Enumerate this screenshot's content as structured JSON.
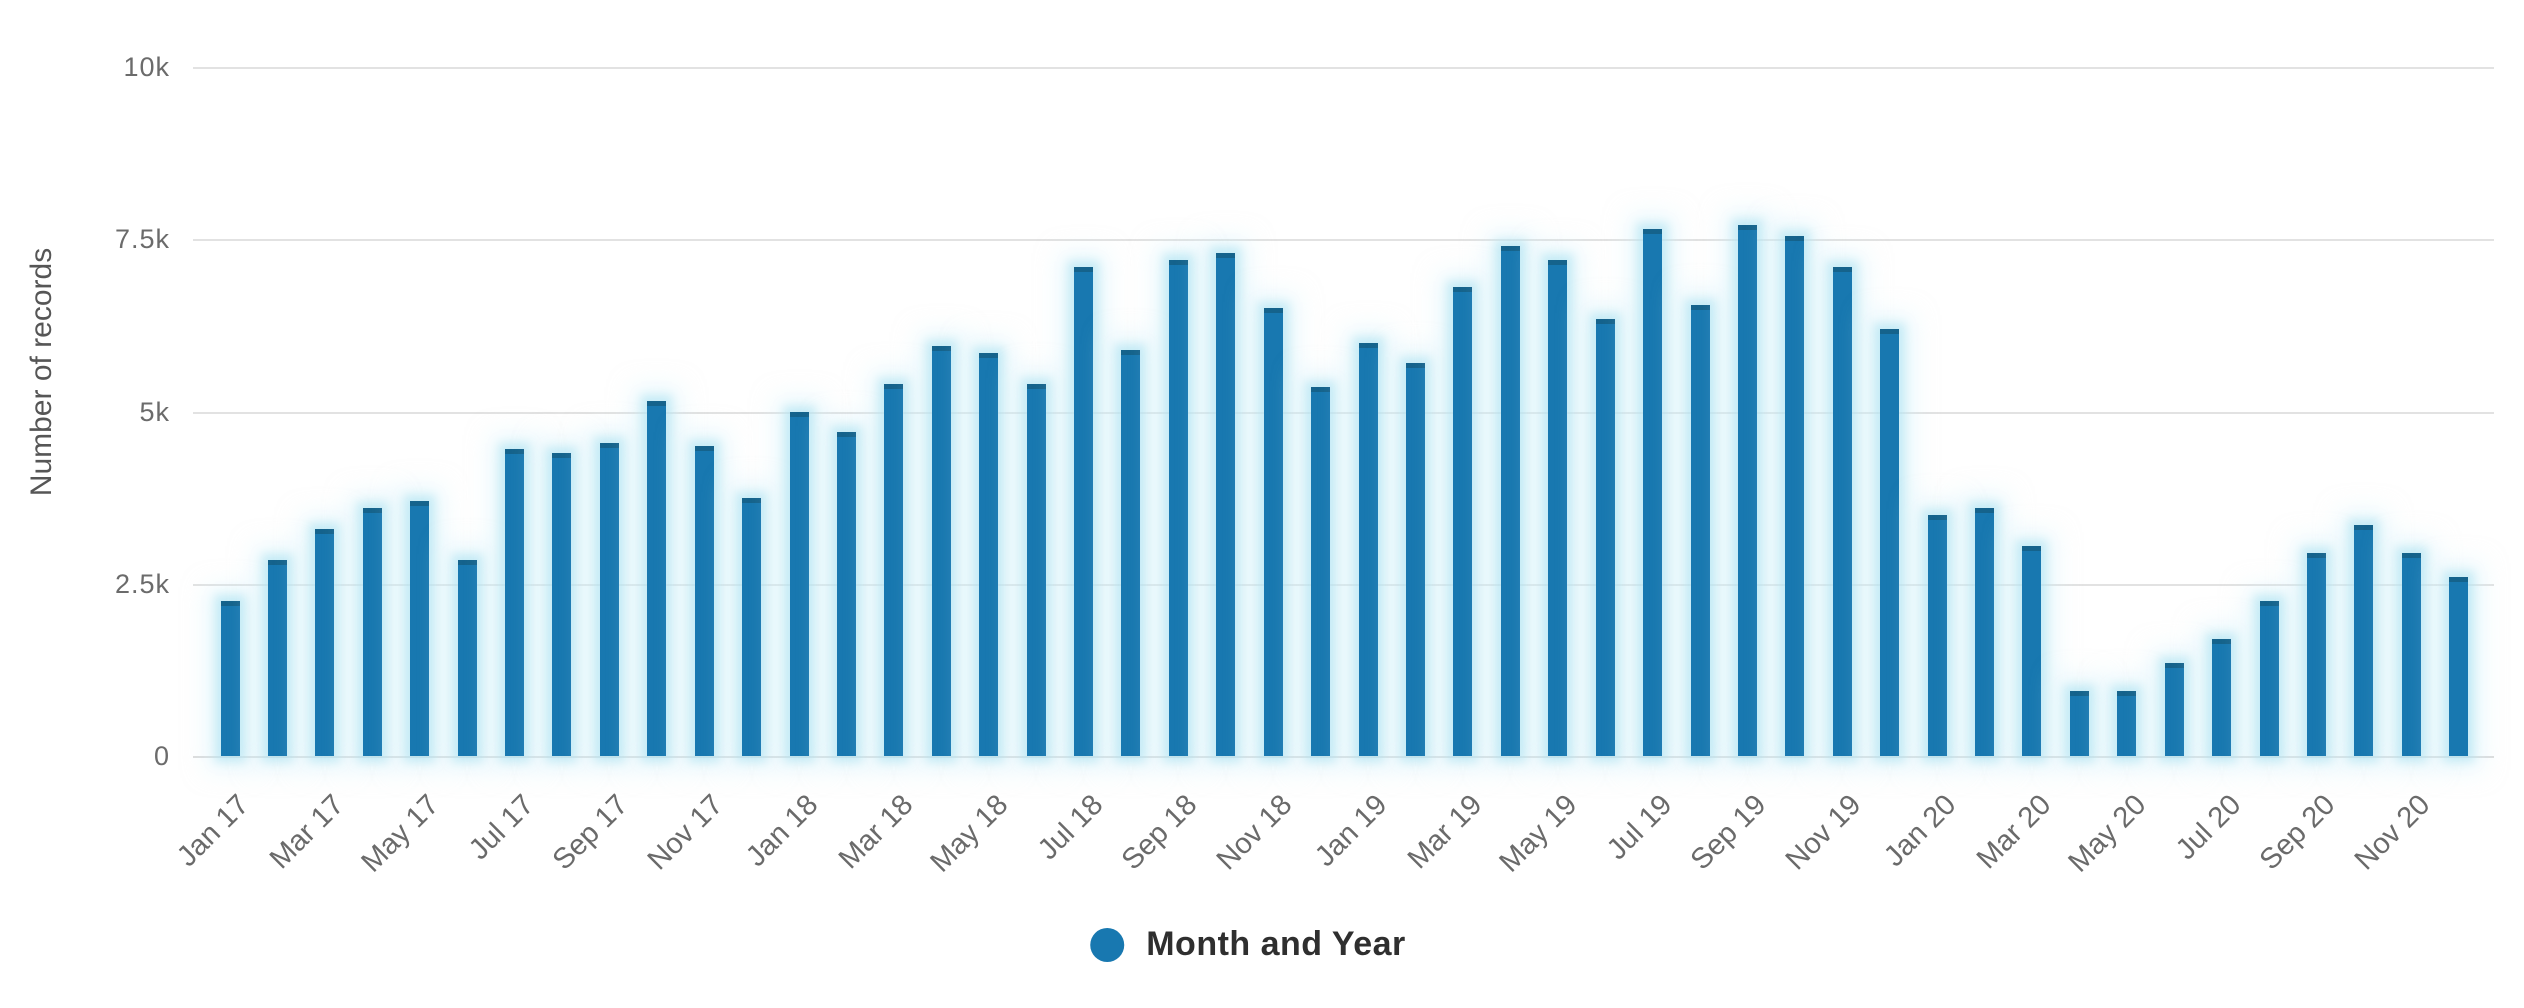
{
  "chart_data": {
    "type": "bar",
    "ylabel": "Number of records",
    "legend_label": "Month and Year",
    "legend_position": "bottom-center",
    "grid": true,
    "ylim": [
      0,
      10000
    ],
    "y_ticks": [
      {
        "label": "10k",
        "value": 10000
      },
      {
        "label": "7.5k",
        "value": 7500
      },
      {
        "label": "5k",
        "value": 5000
      },
      {
        "label": "2.5k",
        "value": 2500
      },
      {
        "label": "0",
        "value": 0
      }
    ],
    "categories": [
      "Jan 17",
      "Feb 17",
      "Mar 17",
      "Apr 17",
      "May 17",
      "Jun 17",
      "Jul 17",
      "Aug 17",
      "Sep 17",
      "Oct 17",
      "Nov 17",
      "Dec 17",
      "Jan 18",
      "Feb 18",
      "Mar 18",
      "Apr 18",
      "May 18",
      "Jun 18",
      "Jul 18",
      "Aug 18",
      "Sep 18",
      "Oct 18",
      "Nov 18",
      "Dec 18",
      "Jan 19",
      "Feb 19",
      "Mar 19",
      "Apr 19",
      "May 19",
      "Jun 19",
      "Jul 19",
      "Aug 19",
      "Sep 19",
      "Oct 19",
      "Nov 19",
      "Dec 19",
      "Jan 20",
      "Feb 20",
      "Mar 20",
      "Apr 20",
      "May 20",
      "Jun 20",
      "Jul 20",
      "Aug 20",
      "Sep 20",
      "Oct 20",
      "Nov 20",
      "Dec 20"
    ],
    "values": [
      2250,
      2850,
      3300,
      3600,
      3700,
      2850,
      4450,
      4400,
      4550,
      5150,
      4500,
      3750,
      5000,
      4700,
      5400,
      5950,
      5850,
      5400,
      7100,
      5900,
      7200,
      7300,
      6500,
      5350,
      6000,
      5700,
      6800,
      7400,
      7200,
      6350,
      7650,
      6550,
      7700,
      7550,
      7100,
      6200,
      3500,
      3600,
      3050,
      950,
      950,
      1350,
      1700,
      2250,
      2950,
      3350,
      2950,
      2600
    ],
    "x_tick_every": 2,
    "x_tick_labels": [
      "Jan 17",
      "Mar 17",
      "May 17",
      "Jul 17",
      "Sep 17",
      "Nov 17",
      "Jan 18",
      "Mar 18",
      "May 18",
      "Jul 18",
      "Sep 18",
      "Nov 18",
      "Jan 19",
      "Mar 19",
      "May 19",
      "Jul 19",
      "Sep 19",
      "Nov 19",
      "Jan 20",
      "Mar 20",
      "May 20",
      "Jul 20",
      "Sep 20",
      "Nov 20"
    ],
    "colors": {
      "bar": "#1878b0",
      "bar_cap": "#15638c",
      "bar_halo": "#a8e0f1",
      "gridline": "#e2e2e2",
      "axis_text": "#6b6b6b",
      "axis_title": "#565656",
      "legend_text": "#2f2f2f",
      "background": "#ffffff"
    }
  }
}
